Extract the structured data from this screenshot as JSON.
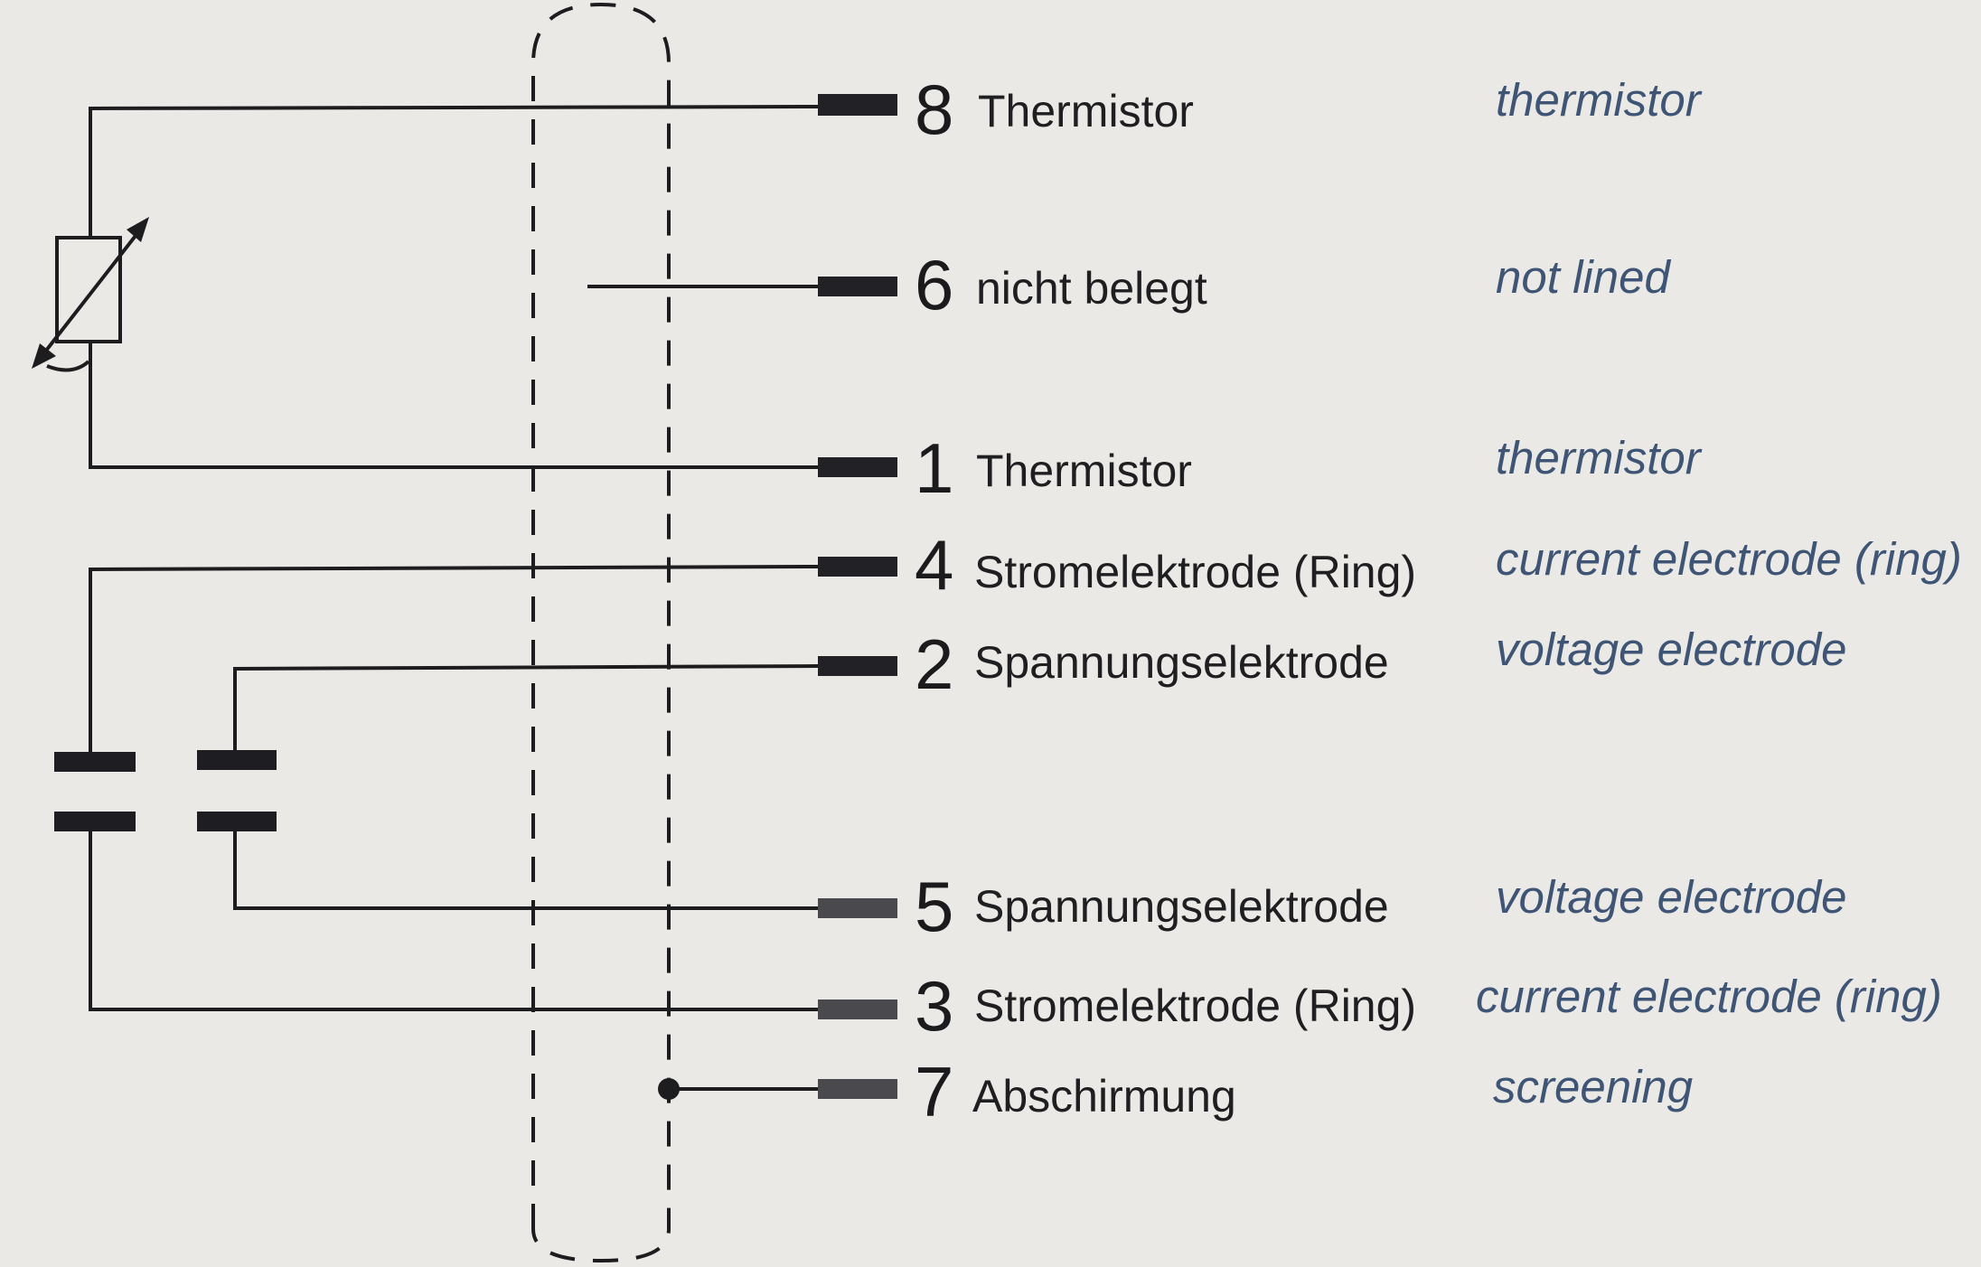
{
  "pins": [
    {
      "number": "8",
      "label_de": "Thermistor",
      "label_en": "thermistor"
    },
    {
      "number": "6",
      "label_de": "nicht belegt",
      "label_en": "not lined"
    },
    {
      "number": "1",
      "label_de": "Thermistor",
      "label_en": "thermistor"
    },
    {
      "number": "4",
      "label_de": "Stromelektrode (Ring)",
      "label_en": "current electrode (ring)"
    },
    {
      "number": "2",
      "label_de": "Spannungselektrode",
      "label_en": "voltage electrode"
    },
    {
      "number": "5",
      "label_de": "Spannungselektrode",
      "label_en": "voltage electrode"
    },
    {
      "number": "3",
      "label_de": "Stromelektrode (Ring)",
      "label_en": "current electrode (ring)"
    },
    {
      "number": "7",
      "label_de": "Abschirmung",
      "label_en": "screening"
    }
  ],
  "colors": {
    "paper": "#ebe9e5",
    "ink": "#1d1d1f",
    "english_text": "#3f5576"
  }
}
